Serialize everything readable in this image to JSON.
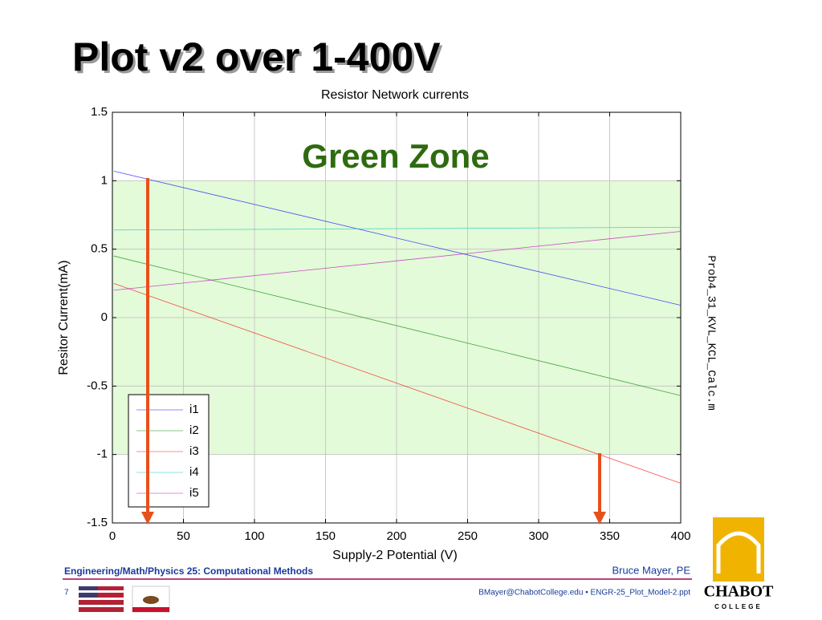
{
  "slide": {
    "title": "Plot v2 over 1-400V",
    "side_note": "Prob4_31_KVL_KCL_Calc.m",
    "footer_left": "Engineering/Math/Physics 25: Computational Methods",
    "footer_right": "Bruce Mayer, PE",
    "page": "7",
    "contact": "BMayer@ChabotCollege.edu  • ENGR-25_Plot_Model-2.ppt",
    "logo_top": "CHABOT",
    "logo_bottom": "COLLEGE"
  },
  "chart_data": {
    "type": "line",
    "title": "Resistor Network currents",
    "x_label": "Supply-2 Potential (V)",
    "y_label": "Resitor Current(mA)",
    "annotation": "Green Zone",
    "shaded_range": [
      -1,
      1
    ],
    "shaded_color": "#e3fbd8",
    "x": [
      1,
      400
    ],
    "series": [
      {
        "name": "i1",
        "color": "#0000ff",
        "values": [
          1.07,
          0.09
        ]
      },
      {
        "name": "i2",
        "color": "#008000",
        "values": [
          0.45,
          -0.57
        ]
      },
      {
        "name": "i3",
        "color": "#ff0000",
        "values": [
          0.25,
          -1.21
        ]
      },
      {
        "name": "i4",
        "color": "#00bfbf",
        "values": [
          0.64,
          0.66
        ]
      },
      {
        "name": "i5",
        "color": "#bf00bf",
        "values": [
          0.2,
          0.63
        ]
      }
    ],
    "xlim": [
      0,
      400
    ],
    "xticks": [
      0,
      50,
      100,
      150,
      200,
      250,
      300,
      350,
      400
    ],
    "ylim": [
      -1.5,
      1.5
    ],
    "yticks": [
      -1.5,
      -1,
      -0.5,
      0,
      0.5,
      1,
      1.5
    ],
    "grid": true,
    "legend": "lower left"
  }
}
